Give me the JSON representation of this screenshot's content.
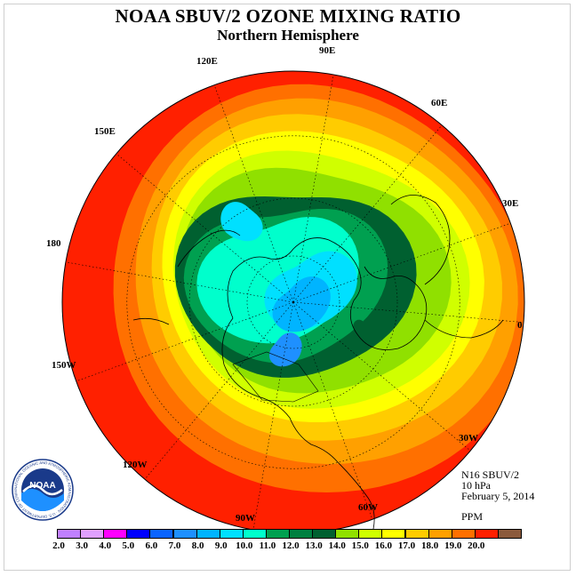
{
  "header": {
    "title": "NOAA SBUV/2 OZONE MIXING RATIO",
    "subtitle": "Northern Hemisphere"
  },
  "info": {
    "instrument": "N16 SBUV/2",
    "pressure_level": "10 hPa",
    "date": "February 5, 2014",
    "units": "PPM"
  },
  "longitude_labels": [
    "90E",
    "60E",
    "30E",
    "0",
    "30W",
    "60W",
    "90W",
    "120W",
    "150W",
    "180",
    "150E",
    "120E"
  ],
  "logo": {
    "text": "NOAA",
    "ring_text": "NATIONAL OCEANIC AND ATMOSPHERIC ADMINISTRATION · U.S. DEPARTMENT OF COMMERCE"
  },
  "colorbar": {
    "ticks": [
      "2.0",
      "3.0",
      "4.0",
      "5.0",
      "6.0",
      "7.0",
      "8.0",
      "9.0",
      "10.0",
      "11.0",
      "12.0",
      "13.0",
      "14.0",
      "15.0",
      "16.0",
      "17.0",
      "18.0",
      "19.0",
      "20.0"
    ],
    "colors": [
      "#c080ff",
      "#e0a0ff",
      "#ff00ff",
      "#0000ff",
      "#0a64ff",
      "#1e90ff",
      "#00b4ff",
      "#00e0ff",
      "#00ffcc",
      "#00a050",
      "#008040",
      "#006030",
      "#90e000",
      "#d0ff00",
      "#ffff00",
      "#ffcc00",
      "#ffa000",
      "#ff7000",
      "#ff2000",
      "#8b5a3c"
    ]
  },
  "field_colors": {
    "c10": "#00ffcc",
    "c11": "#00a050",
    "c12": "#006030",
    "c13": "#90e000",
    "c14": "#d0ff00",
    "c15": "#ffff00",
    "c16": "#ffcc00",
    "c17": "#ffa000",
    "c18": "#ff7000",
    "c19": "#ff2000",
    "c9": "#00e0ff",
    "c8": "#00b4ff",
    "c7": "#1e90ff"
  }
}
